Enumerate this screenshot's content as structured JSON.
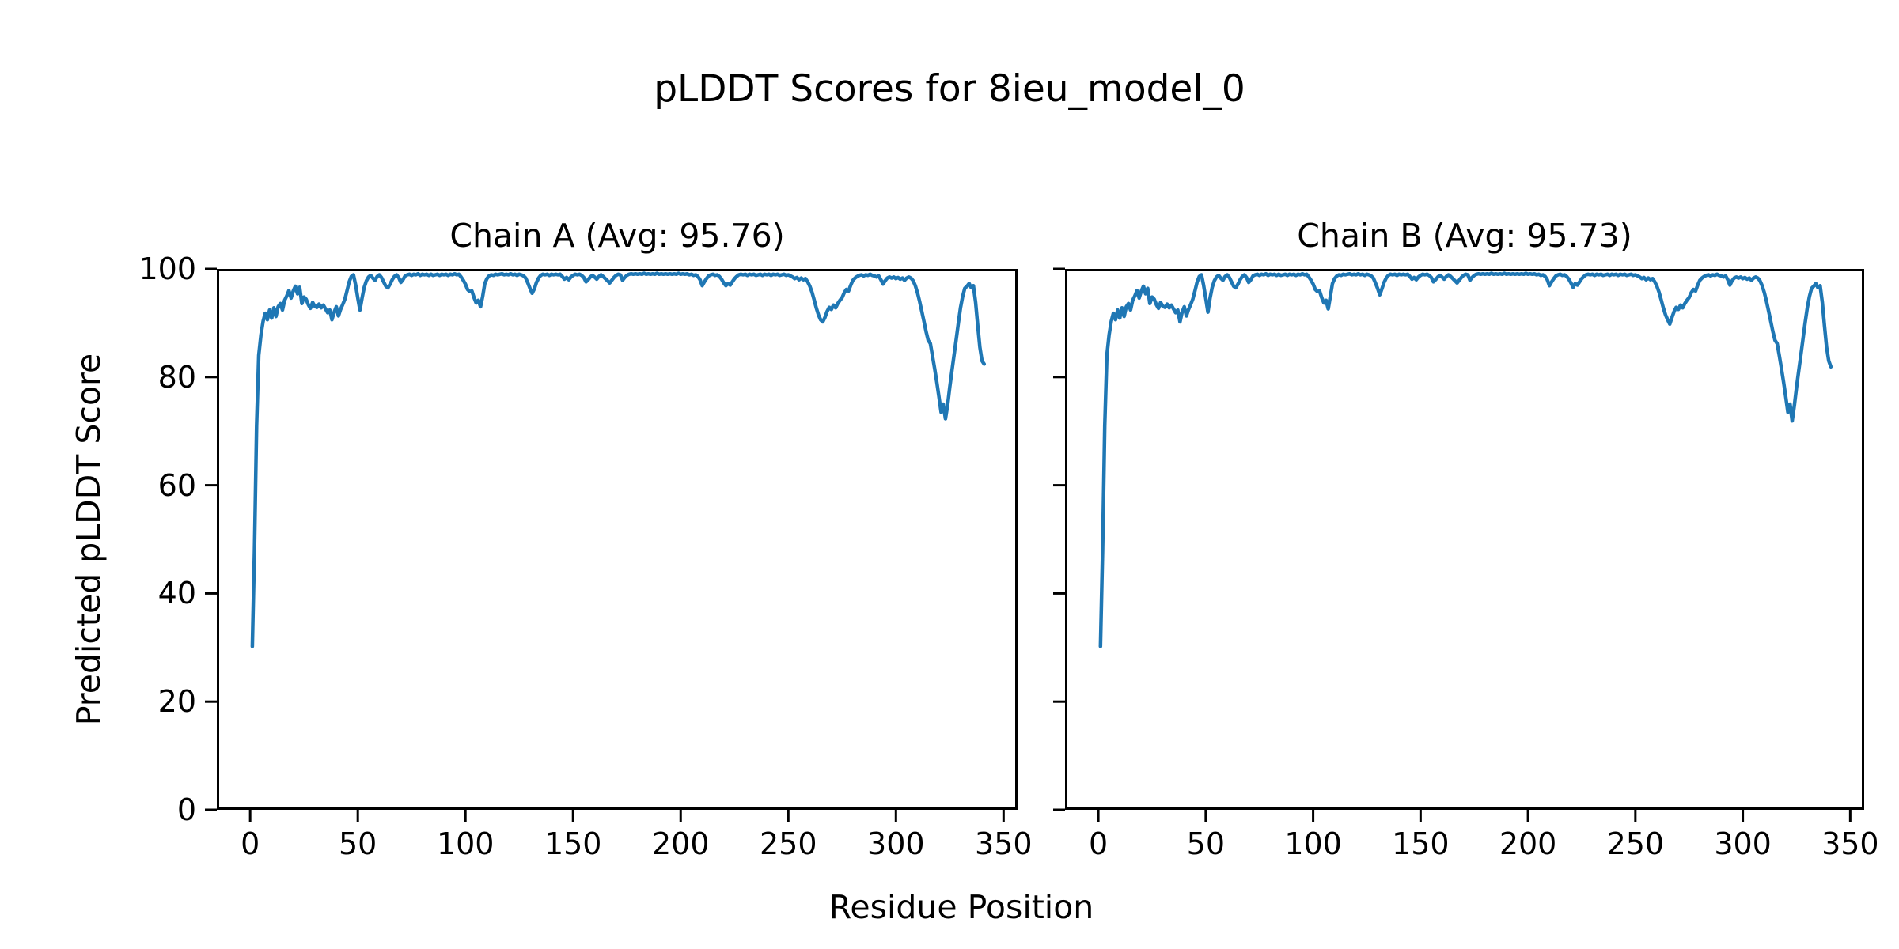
{
  "chart_data": {
    "type": "line",
    "title": "pLDDT Scores for 8ieu_model_0",
    "xlabel": "Residue Position",
    "ylabel": "Predicted pLDDT Score",
    "line_color": "#1f77b4",
    "background_color": "#ffffff",
    "x_ticks": [
      0,
      50,
      100,
      150,
      200,
      250,
      300,
      350
    ],
    "y_ticks": [
      0,
      20,
      40,
      60,
      80,
      100
    ],
    "xlim": [
      -15.5,
      356.5
    ],
    "ylim": [
      0,
      100
    ],
    "x_start_residue": 1,
    "grid": false,
    "legend": "none",
    "subplots": [
      {
        "title": "Chain A (Avg: 95.76)",
        "series_name": "Chain A",
        "average_plddt": 95.76,
        "show_y_tick_labels": true,
        "values": [
          30.2,
          48.0,
          71.0,
          84.0,
          87.8,
          90.3,
          91.8,
          90.6,
          92.4,
          90.9,
          92.8,
          91.2,
          93.0,
          93.6,
          92.4,
          94.2,
          95.0,
          96.0,
          94.6,
          95.9,
          96.8,
          95.4,
          96.6,
          93.6,
          94.8,
          94.4,
          93.4,
          92.7,
          93.8,
          93.1,
          92.9,
          93.5,
          92.8,
          93.3,
          92.6,
          91.9,
          92.4,
          90.6,
          92.0,
          93.0,
          91.3,
          92.5,
          93.4,
          94.4,
          96.0,
          97.6,
          98.6,
          98.9,
          97.0,
          94.6,
          92.4,
          94.6,
          96.6,
          97.8,
          98.5,
          98.8,
          98.3,
          97.9,
          98.6,
          98.9,
          98.4,
          97.6,
          96.8,
          96.5,
          97.2,
          98.0,
          98.6,
          98.9,
          98.4,
          97.5,
          98.0,
          98.7,
          98.9,
          99.0,
          98.8,
          99.0,
          98.9,
          99.1,
          98.8,
          99.0,
          98.9,
          99.0,
          98.8,
          99.0,
          98.8,
          98.9,
          99.0,
          98.8,
          99.0,
          98.9,
          99.0,
          98.8,
          99.0,
          98.9,
          99.1,
          98.9,
          99.0,
          98.5,
          97.9,
          97.2,
          96.2,
          95.8,
          95.9,
          94.7,
          93.7,
          94.2,
          93.0,
          94.9,
          97.3,
          98.2,
          98.7,
          98.9,
          98.8,
          99.0,
          98.9,
          99.0,
          99.1,
          98.9,
          99.0,
          98.9,
          99.1,
          98.9,
          99.0,
          98.8,
          99.0,
          98.9,
          98.7,
          98.3,
          97.4,
          96.4,
          95.5,
          96.3,
          97.5,
          98.3,
          98.8,
          99.0,
          98.9,
          99.0,
          98.8,
          99.0,
          98.9,
          99.0,
          98.9,
          99.0,
          98.6,
          98.1,
          98.4,
          98.0,
          98.5,
          98.8,
          99.0,
          98.9,
          99.0,
          98.8,
          98.4,
          97.6,
          98.0,
          98.5,
          98.8,
          98.5,
          98.1,
          98.6,
          98.9,
          98.6,
          98.2,
          97.8,
          97.4,
          97.9,
          98.4,
          98.8,
          99.0,
          98.9,
          97.9,
          98.4,
          98.8,
          99.0,
          99.1,
          99.0,
          99.1,
          99.0,
          99.1,
          99.0,
          99.2,
          99.0,
          99.1,
          99.0,
          99.1,
          99.0,
          99.2,
          99.0,
          99.1,
          99.0,
          99.1,
          99.0,
          99.1,
          99.0,
          99.1,
          99.0,
          99.2,
          99.0,
          99.1,
          99.0,
          99.1,
          98.9,
          99.0,
          98.8,
          98.9,
          98.6,
          98.0,
          96.9,
          97.6,
          98.2,
          98.7,
          98.9,
          99.0,
          98.8,
          98.9,
          98.6,
          98.1,
          97.4,
          96.9,
          97.3,
          97.0,
          97.6,
          98.2,
          98.6,
          98.9,
          99.0,
          98.9,
          99.0,
          98.8,
          99.0,
          98.9,
          99.0,
          98.8,
          98.9,
          99.0,
          98.8,
          99.0,
          98.9,
          99.0,
          98.8,
          99.0,
          98.9,
          99.0,
          98.8,
          98.9,
          99.0,
          98.8,
          98.9,
          98.7,
          98.5,
          98.2,
          98.4,
          98.0,
          98.3,
          98.0,
          98.2,
          97.6,
          96.8,
          95.7,
          94.3,
          92.8,
          91.5,
          90.6,
          90.2,
          91.0,
          92.1,
          92.9,
          92.5,
          93.3,
          92.8,
          93.6,
          94.2,
          94.7,
          95.6,
          96.2,
          95.9,
          97.0,
          97.9,
          98.3,
          98.6,
          98.8,
          98.9,
          98.7,
          98.9,
          98.8,
          99.0,
          98.8,
          98.7,
          98.5,
          98.7,
          98.0,
          97.2,
          97.8,
          98.3,
          98.5,
          98.3,
          98.5,
          98.2,
          98.4,
          98.1,
          98.3,
          97.9,
          98.3,
          98.5,
          98.3,
          97.8,
          96.9,
          95.6,
          94.0,
          92.2,
          90.3,
          88.4,
          86.8,
          86.2,
          83.9,
          81.5,
          79.0,
          76.3,
          73.5,
          75.0,
          72.3,
          74.8,
          78.1,
          81.1,
          84.0,
          87.0,
          90.0,
          92.8,
          94.9,
          96.4,
          96.8,
          97.3,
          96.5,
          96.9,
          93.8,
          89.5,
          85.5,
          83.0,
          82.4
        ]
      },
      {
        "title": "Chain B (Avg: 95.73)",
        "series_name": "Chain B",
        "average_plddt": 95.73,
        "show_y_tick_labels": false,
        "values": [
          30.2,
          48.0,
          71.0,
          84.0,
          87.8,
          90.3,
          91.8,
          90.6,
          92.4,
          90.9,
          92.8,
          91.2,
          93.0,
          93.6,
          92.4,
          94.2,
          95.0,
          96.0,
          94.6,
          95.9,
          96.8,
          95.4,
          96.4,
          93.6,
          94.8,
          94.4,
          93.4,
          92.7,
          93.8,
          93.1,
          92.9,
          93.5,
          92.8,
          93.3,
          92.6,
          91.9,
          92.4,
          90.2,
          92.0,
          93.0,
          91.3,
          92.5,
          93.4,
          94.4,
          96.0,
          97.6,
          98.6,
          98.9,
          97.0,
          94.6,
          92.0,
          94.6,
          96.6,
          97.8,
          98.5,
          98.8,
          98.3,
          97.9,
          98.6,
          98.9,
          98.4,
          97.6,
          96.8,
          96.5,
          97.2,
          98.0,
          98.6,
          98.9,
          98.4,
          97.5,
          98.0,
          98.7,
          98.9,
          99.0,
          98.8,
          99.0,
          98.9,
          99.1,
          98.8,
          99.0,
          98.9,
          99.0,
          98.8,
          99.0,
          98.8,
          98.9,
          99.0,
          98.8,
          99.0,
          98.9,
          99.0,
          98.8,
          99.0,
          98.9,
          99.1,
          98.9,
          99.0,
          98.5,
          97.9,
          97.2,
          96.2,
          95.8,
          95.9,
          94.7,
          93.7,
          94.2,
          92.6,
          94.9,
          97.3,
          98.2,
          98.7,
          98.9,
          98.8,
          99.0,
          98.9,
          99.0,
          99.1,
          98.9,
          99.0,
          98.9,
          99.1,
          98.9,
          99.0,
          98.8,
          99.0,
          98.9,
          98.7,
          98.3,
          97.4,
          96.4,
          95.2,
          96.3,
          97.5,
          98.3,
          98.8,
          99.0,
          98.9,
          99.0,
          98.8,
          99.0,
          98.9,
          99.0,
          98.9,
          99.0,
          98.6,
          98.1,
          98.4,
          98.0,
          98.5,
          98.8,
          99.0,
          98.9,
          99.0,
          98.8,
          98.4,
          97.6,
          98.0,
          98.5,
          98.8,
          98.5,
          98.1,
          98.6,
          98.9,
          98.6,
          98.2,
          97.8,
          97.4,
          97.9,
          98.4,
          98.8,
          99.0,
          98.9,
          97.9,
          98.4,
          98.8,
          99.0,
          99.1,
          99.0,
          99.1,
          99.0,
          99.1,
          99.0,
          99.2,
          99.0,
          99.1,
          99.0,
          99.1,
          99.0,
          99.2,
          99.0,
          99.1,
          99.0,
          99.1,
          99.0,
          99.1,
          99.0,
          99.1,
          99.0,
          99.2,
          99.0,
          99.1,
          99.0,
          99.1,
          98.9,
          99.0,
          98.8,
          98.9,
          98.6,
          98.0,
          96.9,
          97.6,
          98.2,
          98.7,
          98.9,
          99.0,
          98.8,
          98.9,
          98.6,
          98.1,
          97.4,
          96.6,
          97.3,
          97.0,
          97.6,
          98.2,
          98.6,
          98.9,
          99.0,
          98.9,
          99.0,
          98.8,
          99.0,
          98.9,
          99.0,
          98.8,
          98.9,
          99.0,
          98.8,
          99.0,
          98.9,
          99.0,
          98.8,
          99.0,
          98.9,
          99.0,
          98.8,
          98.9,
          99.0,
          98.8,
          98.9,
          98.7,
          98.5,
          98.2,
          98.4,
          98.0,
          98.3,
          98.0,
          98.2,
          97.6,
          96.8,
          95.7,
          94.3,
          92.8,
          91.5,
          90.6,
          89.8,
          91.0,
          92.1,
          92.9,
          92.5,
          93.3,
          92.8,
          93.6,
          94.2,
          94.7,
          95.6,
          96.2,
          95.9,
          97.0,
          97.9,
          98.3,
          98.6,
          98.8,
          98.9,
          98.7,
          98.9,
          98.8,
          99.0,
          98.8,
          98.7,
          98.5,
          98.7,
          98.0,
          97.0,
          97.8,
          98.3,
          98.5,
          98.3,
          98.5,
          98.2,
          98.4,
          98.1,
          98.3,
          97.9,
          98.3,
          98.5,
          98.3,
          97.8,
          96.9,
          95.6,
          94.0,
          92.2,
          90.3,
          88.4,
          86.8,
          86.2,
          83.9,
          81.5,
          79.0,
          76.3,
          73.5,
          75.0,
          71.9,
          74.8,
          78.1,
          81.1,
          84.0,
          87.0,
          90.0,
          92.8,
          94.9,
          96.4,
          96.8,
          97.3,
          96.5,
          96.9,
          93.8,
          89.5,
          85.5,
          83.0,
          81.9
        ]
      }
    ]
  }
}
